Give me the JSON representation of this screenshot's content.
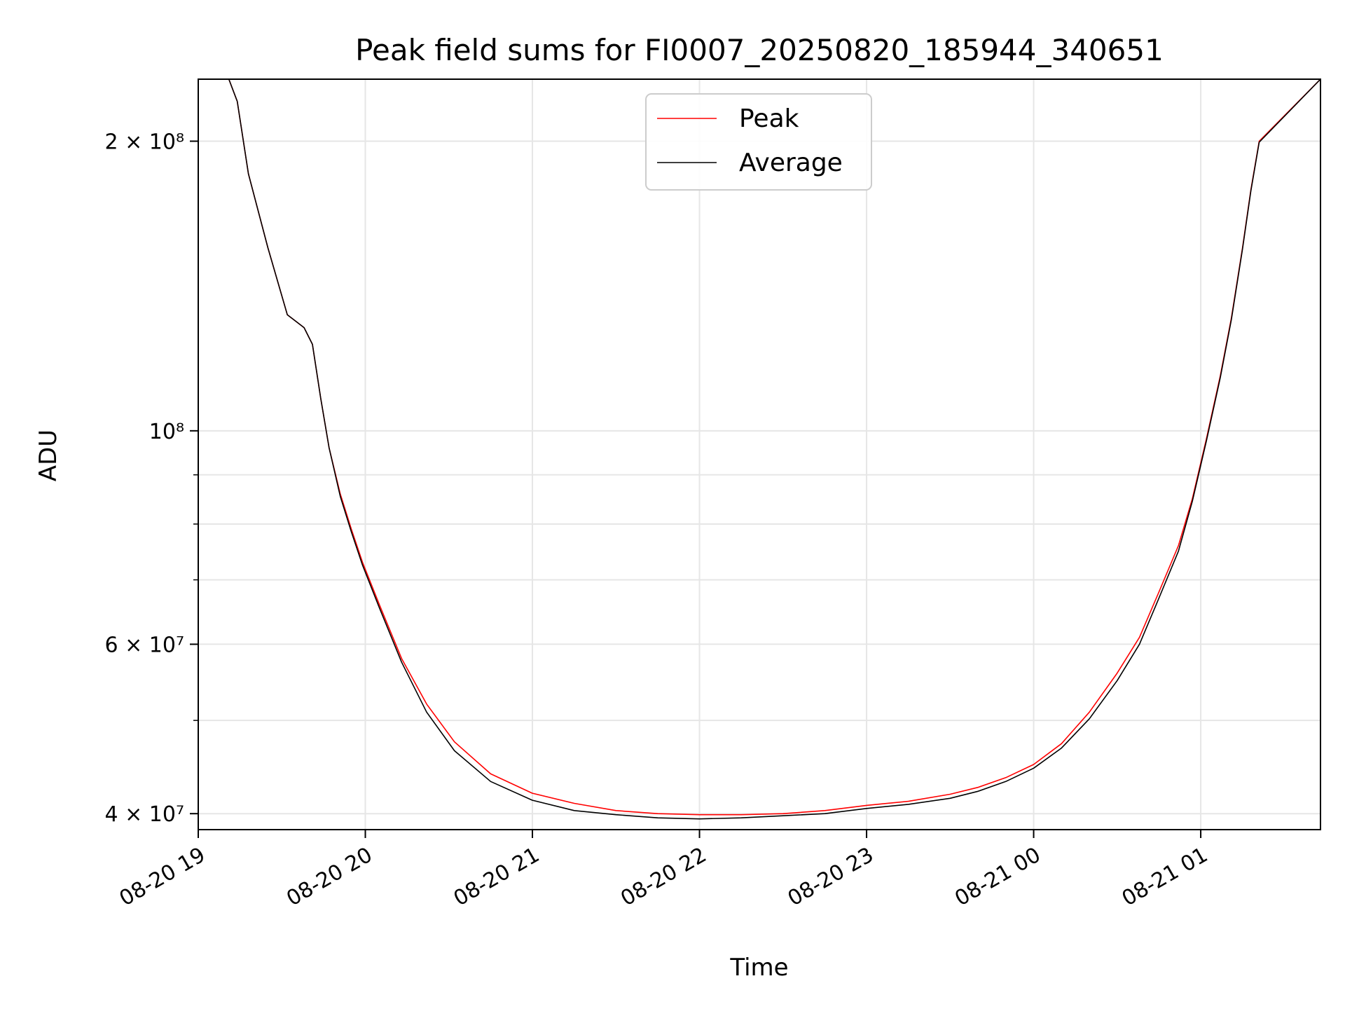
{
  "chart_data": {
    "type": "line",
    "title": "Peak field sums for FI0007_20250820_185944_340651",
    "xlabel": "Time",
    "ylabel": "ADU",
    "y_scale": "log",
    "ylim": [
      38500000,
      232000000
    ],
    "xlim": [
      "2025-08-20 19:00",
      "2025-08-21 01:43"
    ],
    "x_ticks": [
      {
        "t": "2025-08-20 19:00",
        "label": "08-20 19"
      },
      {
        "t": "2025-08-20 20:00",
        "label": "08-20 20"
      },
      {
        "t": "2025-08-20 21:00",
        "label": "08-20 21"
      },
      {
        "t": "2025-08-20 22:00",
        "label": "08-20 22"
      },
      {
        "t": "2025-08-20 23:00",
        "label": "08-20 23"
      },
      {
        "t": "2025-08-21 00:00",
        "label": "08-21 00"
      },
      {
        "t": "2025-08-21 01:00",
        "label": "08-21 01"
      }
    ],
    "y_major_ticks": [
      {
        "v": 40000000,
        "label": "4 × 10⁷"
      },
      {
        "v": 60000000,
        "label": "6 × 10⁷"
      },
      {
        "v": 100000000,
        "label": "10⁸"
      },
      {
        "v": 200000000,
        "label": "2 × 10⁸"
      }
    ],
    "y_minor_ticks": [
      50000000,
      70000000,
      80000000,
      90000000
    ],
    "grid": true,
    "legend_position": "top-center",
    "series": [
      {
        "name": "Peak",
        "color": "#ff0000",
        "x": [
          "2025-08-20 19:00",
          "2025-08-20 19:11",
          "2025-08-20 19:14",
          "2025-08-20 19:18",
          "2025-08-20 19:25",
          "2025-08-20 19:32",
          "2025-08-20 19:35",
          "2025-08-20 19:38",
          "2025-08-20 19:41",
          "2025-08-20 19:44",
          "2025-08-20 19:47",
          "2025-08-20 19:51",
          "2025-08-20 19:55",
          "2025-08-20 19:59",
          "2025-08-20 20:05",
          "2025-08-20 20:13",
          "2025-08-20 20:22",
          "2025-08-20 20:32",
          "2025-08-20 20:45",
          "2025-08-20 21:00",
          "2025-08-20 21:15",
          "2025-08-20 21:30",
          "2025-08-20 21:45",
          "2025-08-20 22:00",
          "2025-08-20 22:15",
          "2025-08-20 22:30",
          "2025-08-20 22:45",
          "2025-08-20 23:00",
          "2025-08-20 23:15",
          "2025-08-20 23:30",
          "2025-08-20 23:40",
          "2025-08-20 23:50",
          "2025-08-21 00:00",
          "2025-08-21 00:10",
          "2025-08-21 00:20",
          "2025-08-21 00:30",
          "2025-08-21 00:38",
          "2025-08-21 00:45",
          "2025-08-21 00:52",
          "2025-08-21 00:57",
          "2025-08-21 01:02",
          "2025-08-21 01:07",
          "2025-08-21 01:11",
          "2025-08-21 01:15",
          "2025-08-21 01:18",
          "2025-08-21 01:21",
          "2025-08-21 01:43"
        ],
        "y": [
          232000000,
          232000000,
          220000000,
          185000000,
          155000000,
          132000000,
          130000000,
          128000000,
          123000000,
          108000000,
          96000000,
          86000000,
          79000000,
          73000000,
          66000000,
          58000000,
          52000000,
          47500000,
          44000000,
          42000000,
          41000000,
          40300000,
          40000000,
          39900000,
          39900000,
          40000000,
          40300000,
          40800000,
          41200000,
          41900000,
          42600000,
          43600000,
          45000000,
          47300000,
          51000000,
          56000000,
          61000000,
          68000000,
          76000000,
          85000000,
          98000000,
          114000000,
          131000000,
          155000000,
          178000000,
          200000000,
          232000000
        ]
      },
      {
        "name": "Average",
        "color": "#000000",
        "x": [
          "2025-08-20 19:00",
          "2025-08-20 19:11",
          "2025-08-20 19:14",
          "2025-08-20 19:18",
          "2025-08-20 19:25",
          "2025-08-20 19:32",
          "2025-08-20 19:35",
          "2025-08-20 19:38",
          "2025-08-20 19:41",
          "2025-08-20 19:44",
          "2025-08-20 19:47",
          "2025-08-20 19:51",
          "2025-08-20 19:55",
          "2025-08-20 19:59",
          "2025-08-20 20:05",
          "2025-08-20 20:13",
          "2025-08-20 20:22",
          "2025-08-20 20:32",
          "2025-08-20 20:45",
          "2025-08-20 21:00",
          "2025-08-20 21:15",
          "2025-08-20 21:30",
          "2025-08-20 21:45",
          "2025-08-20 22:00",
          "2025-08-20 22:15",
          "2025-08-20 22:30",
          "2025-08-20 22:45",
          "2025-08-20 23:00",
          "2025-08-20 23:15",
          "2025-08-20 23:30",
          "2025-08-20 23:40",
          "2025-08-20 23:50",
          "2025-08-21 00:00",
          "2025-08-21 00:10",
          "2025-08-21 00:20",
          "2025-08-21 00:30",
          "2025-08-21 00:38",
          "2025-08-21 00:45",
          "2025-08-21 00:52",
          "2025-08-21 00:57",
          "2025-08-21 01:02",
          "2025-08-21 01:07",
          "2025-08-21 01:11",
          "2025-08-21 01:15",
          "2025-08-21 01:18",
          "2025-08-21 01:21",
          "2025-08-21 01:43"
        ],
        "y": [
          232000000,
          232000000,
          220000000,
          185000000,
          155000000,
          132000000,
          130000000,
          128000000,
          123000000,
          108000000,
          96000000,
          85500000,
          78500000,
          72500000,
          65500000,
          57500000,
          51000000,
          46500000,
          43200000,
          41300000,
          40300000,
          39900000,
          39600000,
          39500000,
          39600000,
          39800000,
          40000000,
          40500000,
          40900000,
          41500000,
          42200000,
          43200000,
          44600000,
          46800000,
          50200000,
          55000000,
          60000000,
          67000000,
          75000000,
          84500000,
          97500000,
          113500000,
          130500000,
          154500000,
          177500000,
          199500000,
          232000000
        ]
      }
    ]
  }
}
